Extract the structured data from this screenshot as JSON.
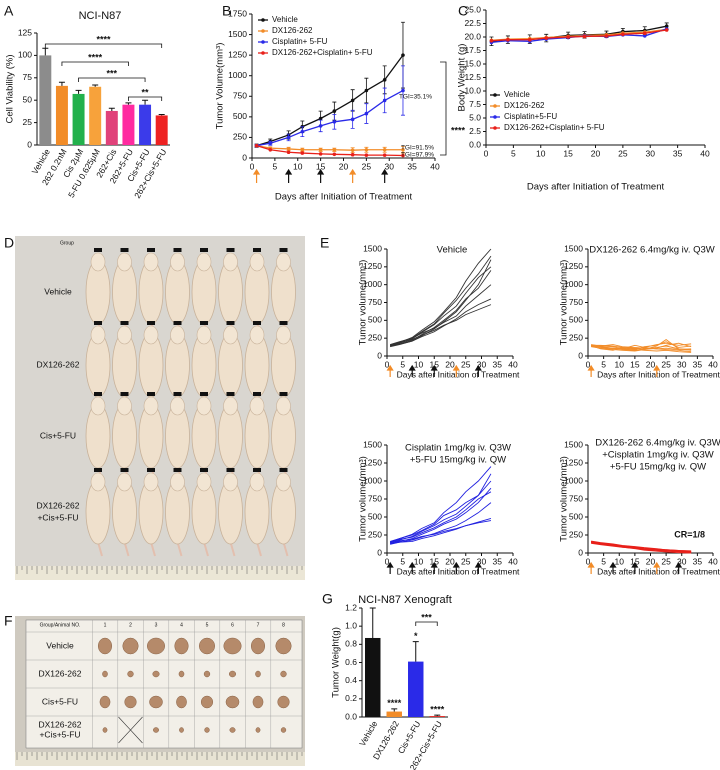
{
  "panel_labels": [
    "A",
    "B",
    "C",
    "D",
    "E",
    "F",
    "G"
  ],
  "chart_data": [
    {
      "type": "bar",
      "title": "NCI-N87",
      "y_label": "Cell Viability (%)",
      "categories": [
        "Vehicle",
        "262 0.2nM",
        "Cis 2μM",
        "5-FU 0.625μM",
        "262+Cis",
        "262+5-FU",
        "Cis+5-FU",
        "262+Cis+5-FU"
      ],
      "values": [
        100,
        66,
        57,
        65,
        38,
        45,
        45,
        33
      ],
      "errors": [
        8,
        4,
        4,
        2,
        3,
        2,
        5,
        1
      ],
      "colors": [
        "#8c8c8c",
        "#f28c28",
        "#22b14c",
        "#f7a23b",
        "#e0427a",
        "#ff2aa0",
        "#3b3bea",
        "#ee2222"
      ],
      "ylim": [
        0,
        125
      ],
      "yticks": [
        0,
        25,
        50,
        75,
        100,
        125
      ],
      "annotations": [
        {
          "text": "****"
        },
        {
          "text": "****"
        },
        {
          "text": "***"
        },
        {
          "text": "**"
        }
      ]
    },
    {
      "type": "line",
      "y_label": "Tumor Volume(mm³)",
      "x_label": "Days after Initiation of Treatment",
      "x": [
        1,
        4,
        8,
        11,
        15,
        18,
        22,
        25,
        29,
        33
      ],
      "xlim": [
        0,
        40
      ],
      "xticks": [
        0,
        5,
        10,
        15,
        20,
        25,
        30,
        35,
        40
      ],
      "ylim": [
        0,
        1750
      ],
      "yticks": [
        0,
        250,
        500,
        750,
        1000,
        1250,
        1500,
        1750
      ],
      "markers": true,
      "legend": "upper left",
      "series": [
        {
          "name": "Vehicle",
          "color": "#111111",
          "values": [
            150,
            200,
            280,
            380,
            480,
            570,
            700,
            820,
            950,
            1250
          ],
          "errors": [
            20,
            30,
            50,
            70,
            90,
            110,
            130,
            150,
            170,
            400
          ]
        },
        {
          "name": "DX126-262",
          "color": "#f28c28",
          "values": [
            150,
            120,
            110,
            100,
            100,
            100,
            95,
            100,
            100,
            100
          ],
          "errors": [
            10,
            15,
            20,
            20,
            20,
            20,
            30,
            30,
            30,
            40
          ]
        },
        {
          "name": "Cisplatin+ 5-FU",
          "color": "#2a2ae8",
          "values": [
            150,
            180,
            250,
            320,
            390,
            440,
            470,
            540,
            700,
            820
          ],
          "errors": [
            15,
            25,
            40,
            60,
            70,
            90,
            110,
            120,
            150,
            300
          ]
        },
        {
          "name": "DX126-262+Cisplatin+ 5-FU",
          "color": "#e8201a",
          "values": [
            150,
            100,
            70,
            60,
            50,
            45,
            40,
            35,
            35,
            30
          ]
        }
      ],
      "dosing": {
        "days": [
          1,
          8,
          15,
          22,
          29
        ],
        "colors": [
          "#f28c28",
          "#111111",
          "#111111",
          "#f28c28",
          "#111111"
        ]
      },
      "annotations": [
        {
          "text": "TGI=35.1%",
          "color": "#2a2ae8"
        },
        {
          "text": "TGI=91.5%",
          "color": "#f28c28"
        },
        {
          "text": "TGI=97.9%",
          "color": "#e8201a"
        },
        {
          "text": "****",
          "color": "#111111"
        }
      ]
    },
    {
      "type": "line",
      "y_label": "Body Weight (g)",
      "x_label": "Days after Initiation of Treatment",
      "x": [
        1,
        4,
        8,
        11,
        15,
        18,
        22,
        25,
        29,
        33
      ],
      "xlim": [
        0,
        40
      ],
      "xticks": [
        0,
        5,
        10,
        15,
        20,
        25,
        30,
        35,
        40
      ],
      "ylim": [
        0,
        25
      ],
      "yticks": [
        {
          "value": 0,
          "label": "0.0"
        },
        2.5,
        {
          "value": 5,
          "label": "5.0"
        },
        7.5,
        {
          "value": 10,
          "label": "10.0"
        },
        12.5,
        {
          "value": 15,
          "label": "15.0"
        },
        17.5,
        {
          "value": 20,
          "label": "20.0"
        },
        22.5,
        {
          "value": 25,
          "label": "25.0"
        }
      ],
      "markers": true,
      "legend": "center left",
      "series": [
        {
          "name": "Vehicle",
          "color": "#111111",
          "values": [
            19.2,
            19.5,
            19.6,
            19.8,
            20.3,
            20.4,
            20.5,
            21.0,
            21.2,
            22.0
          ],
          "errors": [
            0.8,
            0.7,
            0.8,
            0.7,
            0.6,
            0.6,
            0.6,
            0.6,
            0.7,
            0.6
          ]
        },
        {
          "name": "DX126-262",
          "color": "#f28c28",
          "values": [
            19.4,
            19.6,
            19.7,
            19.9,
            20.1,
            20.3,
            20.4,
            20.7,
            20.9,
            21.4
          ]
        },
        {
          "name": "Cisplatin+5-FU",
          "color": "#2a2ae8",
          "values": [
            19.0,
            19.3,
            19.2,
            19.6,
            19.9,
            20.2,
            20.1,
            20.4,
            20.2,
            21.5
          ]
        },
        {
          "name": "DX126-262+Cisplatin+ 5-FU",
          "color": "#e8201a",
          "values": [
            19.3,
            19.5,
            19.5,
            19.8,
            20.0,
            20.1,
            20.2,
            20.5,
            20.7,
            21.3
          ]
        }
      ]
    },
    {
      "type": "line",
      "title": [
        "Vehicle"
      ],
      "y_label": "Tumor volume(mm³)",
      "x_label": "Days after Initiation of Treatment",
      "x": [
        1,
        4,
        8,
        11,
        15,
        18,
        22,
        25,
        29,
        33
      ],
      "xlim": [
        0,
        40
      ],
      "xticks": [
        0,
        5,
        10,
        15,
        20,
        25,
        30,
        35,
        40
      ],
      "ylim": [
        0,
        1500
      ],
      "yticks": [
        0,
        250,
        500,
        750,
        1000,
        1250,
        1500
      ],
      "color": "#333333",
      "dosing": {
        "days": [
          1,
          8,
          15,
          22,
          29
        ],
        "colors": [
          "#f28c28",
          "#111111",
          "#111111",
          "#f28c28",
          "#111111"
        ]
      },
      "series": [
        {
          "values": [
            130,
            160,
            210,
            280,
            380,
            480,
            620,
            780,
            1000,
            1350
          ]
        },
        {
          "values": [
            150,
            190,
            260,
            360,
            480,
            620,
            820,
            1050,
            1300,
            1500
          ]
        },
        {
          "values": [
            140,
            170,
            220,
            300,
            400,
            500,
            640,
            800,
            950,
            1200
          ]
        },
        {
          "values": [
            160,
            200,
            250,
            320,
            390,
            470,
            560,
            700,
            850,
            1000
          ]
        },
        {
          "values": [
            145,
            180,
            240,
            330,
            440,
            560,
            700,
            880,
            1100,
            1250
          ]
        },
        {
          "values": [
            135,
            165,
            210,
            270,
            340,
            420,
            520,
            620,
            720,
            800
          ]
        },
        {
          "values": [
            150,
            185,
            230,
            290,
            360,
            430,
            500,
            580,
            650,
            720
          ]
        },
        {
          "values": [
            155,
            195,
            250,
            340,
            450,
            600,
            780,
            950,
            1150,
            1400
          ]
        }
      ]
    },
    {
      "type": "line",
      "title": [
        "DX126-262 6.4mg/kg iv. Q3W"
      ],
      "y_label": "Tumor volume(mm³)",
      "x_label": "Days after Initiation of Treatment",
      "x": [
        1,
        4,
        8,
        11,
        15,
        18,
        22,
        25,
        29,
        33
      ],
      "xlim": [
        0,
        40
      ],
      "xticks": [
        0,
        5,
        10,
        15,
        20,
        25,
        30,
        35,
        40
      ],
      "ylim": [
        0,
        1500
      ],
      "yticks": [
        0,
        250,
        500,
        750,
        1000,
        1250,
        1500
      ],
      "color": "#f28c28",
      "dosing": {
        "days": [
          1,
          22
        ],
        "colors": [
          "#f28c28",
          "#f28c28"
        ]
      },
      "series": [
        {
          "values": [
            150,
            120,
            100,
            110,
            90,
            130,
            150,
            200,
            120,
            140
          ]
        },
        {
          "values": [
            140,
            130,
            110,
            90,
            80,
            100,
            120,
            140,
            100,
            90
          ]
        },
        {
          "values": [
            160,
            140,
            130,
            100,
            150,
            120,
            100,
            110,
            90,
            100
          ]
        },
        {
          "values": [
            130,
            110,
            90,
            80,
            70,
            90,
            110,
            150,
            180,
            130
          ]
        },
        {
          "values": [
            145,
            100,
            80,
            120,
            110,
            90,
            140,
            230,
            100,
            80
          ]
        },
        {
          "values": [
            155,
            140,
            160,
            130,
            120,
            110,
            100,
            90,
            80,
            60
          ]
        },
        {
          "values": [
            135,
            125,
            110,
            100,
            90,
            80,
            70,
            80,
            60,
            50
          ]
        },
        {
          "values": [
            150,
            150,
            140,
            120,
            100,
            120,
            160,
            180,
            150,
            170
          ]
        }
      ]
    },
    {
      "type": "line",
      "title": [
        "Cisplatin 1mg/kg iv. Q3W",
        "+5-FU 15mg/kg iv. QW"
      ],
      "y_label": "Tumor volume(mm³)",
      "x_label": "Days after Initiation of Treatment",
      "x": [
        1,
        4,
        8,
        11,
        15,
        18,
        22,
        25,
        29,
        33
      ],
      "xlim": [
        0,
        40
      ],
      "xticks": [
        0,
        5,
        10,
        15,
        20,
        25,
        30,
        35,
        40
      ],
      "ylim": [
        0,
        1500
      ],
      "yticks": [
        0,
        250,
        500,
        750,
        1000,
        1250,
        1500
      ],
      "color": "#2020e0",
      "dosing": {
        "days": [
          1,
          8,
          15,
          22,
          29
        ],
        "colors": [
          "#111111",
          "#111111",
          "#111111",
          "#111111",
          "#111111"
        ]
      },
      "series": [
        {
          "values": [
            150,
            200,
            260,
            340,
            420,
            560,
            700,
            850,
            1000,
            1200
          ]
        },
        {
          "values": [
            140,
            180,
            230,
            300,
            380,
            460,
            540,
            650,
            800,
            1000
          ]
        },
        {
          "values": [
            130,
            160,
            200,
            260,
            330,
            400,
            470,
            560,
            700,
            900
          ]
        },
        {
          "values": [
            150,
            190,
            220,
            280,
            350,
            420,
            500,
            600,
            750,
            850
          ]
        },
        {
          "values": [
            160,
            200,
            250,
            310,
            400,
            520,
            600,
            700,
            800,
            1100
          ]
        },
        {
          "values": [
            120,
            150,
            180,
            220,
            270,
            320,
            380,
            450,
            560,
            700
          ]
        },
        {
          "values": [
            140,
            170,
            190,
            230,
            260,
            300,
            340,
            380,
            420,
            450
          ]
        },
        {
          "values": [
            130,
            150,
            160,
            200,
            240,
            280,
            330,
            380,
            430,
            480
          ]
        }
      ]
    },
    {
      "type": "line",
      "title": [
        "DX126-262 6.4mg/kg iv. Q3W",
        "+Cisplatin 1mg/kg iv. Q3W",
        "+5-FU 15mg/kg iv. QW"
      ],
      "y_label": "Tumor volume(mm³)",
      "x_label": "Days after Initiation of Treatment",
      "x": [
        1,
        4,
        8,
        11,
        15,
        18,
        22,
        25,
        29,
        33
      ],
      "xlim": [
        0,
        40
      ],
      "xticks": [
        0,
        5,
        10,
        15,
        20,
        25,
        30,
        35,
        40
      ],
      "ylim": [
        0,
        1500
      ],
      "yticks": [
        0,
        250,
        500,
        750,
        1000,
        1250,
        1500
      ],
      "color": "#e8201a",
      "dosing": {
        "days": [
          1,
          8,
          15,
          22,
          29
        ],
        "colors": [
          "#f28c28",
          "#111111",
          "#111111",
          "#f28c28",
          "#111111"
        ]
      },
      "annotations": [
        {
          "text": "CR=1/8",
          "color": "#e8201a"
        }
      ],
      "series": [
        {
          "values": [
            160,
            140,
            120,
            100,
            80,
            60,
            45,
            35,
            25,
            20
          ]
        },
        {
          "values": [
            150,
            130,
            110,
            90,
            70,
            55,
            40,
            30,
            20,
            10
          ]
        },
        {
          "values": [
            140,
            120,
            100,
            85,
            65,
            50,
            35,
            25,
            15,
            5
          ]
        },
        {
          "values": [
            155,
            135,
            115,
            95,
            75,
            60,
            45,
            35,
            25,
            15
          ]
        },
        {
          "values": [
            145,
            125,
            105,
            80,
            60,
            40,
            25,
            15,
            5,
            0
          ]
        },
        {
          "values": [
            150,
            135,
            120,
            100,
            85,
            70,
            55,
            45,
            35,
            25
          ]
        },
        {
          "values": [
            135,
            115,
            95,
            80,
            65,
            50,
            40,
            30,
            20,
            10
          ]
        },
        {
          "values": [
            165,
            145,
            125,
            105,
            90,
            75,
            60,
            45,
            35,
            30
          ]
        }
      ]
    },
    {
      "type": "bar",
      "title": "NCI-N87 Xenograft",
      "y_label": "Tumor Weight(g)",
      "categories": [
        "Vehicle",
        "DX126-262",
        "Cis+5-FU",
        "262+Cis+5-FU"
      ],
      "values": [
        0.87,
        0.06,
        0.61,
        0.01
      ],
      "errors": [
        0.33,
        0.03,
        0.22,
        0.01
      ],
      "colors": [
        "#111111",
        "#f28c28",
        "#2a2ae8",
        "#e8201a"
      ],
      "ylim": [
        0,
        1.2
      ],
      "yticks": [
        {
          "value": 0,
          "label": "0.0"
        },
        0.2,
        0.4,
        0.6,
        0.8,
        {
          "value": 1,
          "label": "1.0"
        },
        1.2
      ],
      "annotations": [
        {
          "text": "****"
        },
        {
          "text": "*"
        },
        {
          "text": "****"
        },
        {
          "text": "***"
        }
      ]
    }
  ],
  "photo_d": {
    "header": "Group",
    "groups": [
      [
        "Vehicle"
      ],
      [
        "DX126-262"
      ],
      [
        "Cis+5-FU"
      ],
      [
        "DX126-262",
        "+Cis+5-FU"
      ]
    ]
  },
  "photo_f": {
    "header": "Group/Animal NO.",
    "columns": [
      "1",
      "2",
      "3",
      "4",
      "5",
      "6",
      "7",
      "8"
    ],
    "rows": [
      [
        "Vehicle"
      ],
      [
        "DX126-262"
      ],
      [
        "Cis+5-FU"
      ],
      [
        "DX126-262",
        "+Cis+5-FU"
      ]
    ]
  }
}
